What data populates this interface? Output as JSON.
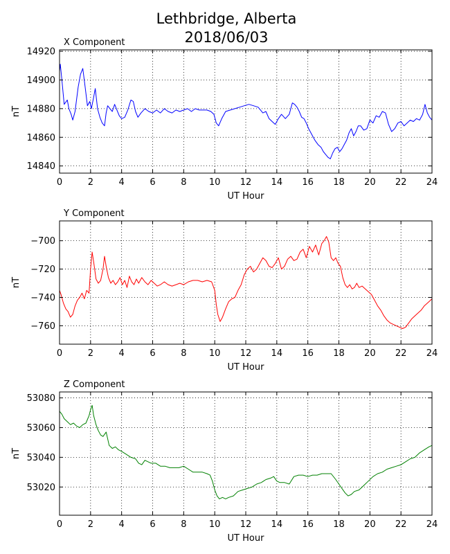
{
  "figure": {
    "title_line1": "Lethbridge, Alberta",
    "title_line2": "2018/06/03"
  },
  "chart_data": [
    {
      "type": "line",
      "title": "X Component",
      "xlabel": "UT Hour",
      "ylabel": "nT",
      "color": "#0000ff",
      "xlim": [
        0,
        24
      ],
      "ylim": [
        14835,
        14921
      ],
      "xticks": [
        0,
        2,
        4,
        6,
        8,
        10,
        12,
        14,
        16,
        18,
        20,
        22,
        24
      ],
      "yticks": [
        14840,
        14860,
        14880,
        14900,
        14920
      ],
      "grid": true,
      "series": [
        {
          "x": [
            0,
            0.05,
            0.15,
            0.3,
            0.5,
            0.6,
            0.75,
            0.85,
            1.0,
            1.2,
            1.35,
            1.5,
            1.65,
            1.8,
            1.95,
            2.05,
            2.2,
            2.3,
            2.45,
            2.6,
            2.75,
            2.9,
            3.0,
            3.1,
            3.25,
            3.4,
            3.55,
            3.7,
            3.85,
            4.0,
            4.2,
            4.4,
            4.6,
            4.75,
            4.9,
            5.05,
            5.25,
            5.5,
            5.75,
            6.0,
            6.25,
            6.5,
            6.75,
            7.0,
            7.25,
            7.5,
            7.75,
            8.0,
            8.25,
            8.5,
            8.75,
            9.0,
            9.25,
            9.5,
            9.75,
            9.95,
            10.1,
            10.25,
            10.45,
            10.7,
            11.0,
            11.3,
            11.6,
            11.9,
            12.2,
            12.5,
            12.8,
            13.1,
            13.3,
            13.5,
            13.7,
            13.9,
            14.1,
            14.3,
            14.55,
            14.8,
            15.0,
            15.15,
            15.3,
            15.45,
            15.6,
            15.75,
            15.9,
            16.05,
            16.25,
            16.45,
            16.65,
            16.85,
            17.0,
            17.15,
            17.3,
            17.45,
            17.6,
            17.75,
            17.9,
            18.05,
            18.2,
            18.35,
            18.5,
            18.65,
            18.8,
            18.95,
            19.1,
            19.25,
            19.4,
            19.6,
            19.8,
            20.0,
            20.2,
            20.4,
            20.6,
            20.8,
            21.0,
            21.2,
            21.4,
            21.6,
            21.8,
            22.0,
            22.2,
            22.4,
            22.6,
            22.8,
            23.0,
            23.2,
            23.4,
            23.55,
            23.7,
            23.85,
            24.0
          ],
          "y": [
            14906,
            14911,
            14900,
            14883,
            14886,
            14880,
            14876,
            14872,
            14878,
            14895,
            14904,
            14908,
            14895,
            14882,
            14885,
            14880,
            14888,
            14894,
            14880,
            14874,
            14870,
            14868,
            14877,
            14882,
            14880,
            14878,
            14883,
            14879,
            14875,
            14873,
            14874,
            14879,
            14886,
            14885,
            14878,
            14874,
            14877,
            14880,
            14878,
            14877,
            14879,
            14877,
            14880,
            14878,
            14877,
            14879,
            14878,
            14879,
            14880,
            14878,
            14880,
            14879,
            14879,
            14879,
            14878,
            14876,
            14870,
            14868,
            14873,
            14878,
            14879,
            14880,
            14881,
            14882,
            14883,
            14882,
            14881,
            14877,
            14878,
            14873,
            14871,
            14869,
            14873,
            14876,
            14873,
            14876,
            14884,
            14883,
            14881,
            14878,
            14874,
            14873,
            14870,
            14866,
            14862,
            14858,
            14855,
            14853,
            14850,
            14848,
            14846,
            14845,
            14849,
            14852,
            14853,
            14850,
            14852,
            14855,
            14858,
            14863,
            14866,
            14861,
            14864,
            14868,
            14868,
            14865,
            14866,
            14872,
            14870,
            14875,
            14874,
            14878,
            14877,
            14869,
            14864,
            14866,
            14870,
            14871,
            14868,
            14870,
            14872,
            14871,
            14873,
            14872,
            14876,
            14883,
            14877,
            14874,
            14872
          ]
        }
      ]
    },
    {
      "type": "line",
      "title": "Y Component",
      "xlabel": "UT Hour",
      "ylabel": "nT",
      "color": "#ff0000",
      "xlim": [
        0,
        24
      ],
      "ylim": [
        -773,
        -686
      ],
      "xticks": [
        0,
        2,
        4,
        6,
        8,
        10,
        12,
        14,
        16,
        18,
        20,
        22,
        24
      ],
      "yticks": [
        -760,
        -740,
        -720,
        -700
      ],
      "grid": true,
      "series": [
        {
          "x": [
            0,
            0.1,
            0.25,
            0.4,
            0.55,
            0.7,
            0.85,
            1.0,
            1.15,
            1.3,
            1.45,
            1.6,
            1.75,
            1.9,
            2.0,
            2.1,
            2.2,
            2.35,
            2.5,
            2.65,
            2.8,
            2.9,
            3.0,
            3.15,
            3.3,
            3.45,
            3.6,
            3.75,
            3.9,
            4.05,
            4.2,
            4.35,
            4.5,
            4.65,
            4.8,
            4.95,
            5.1,
            5.3,
            5.5,
            5.7,
            5.9,
            6.1,
            6.3,
            6.5,
            6.75,
            7.0,
            7.25,
            7.5,
            7.75,
            8.0,
            8.3,
            8.6,
            8.9,
            9.2,
            9.5,
            9.8,
            10.0,
            10.1,
            10.2,
            10.35,
            10.5,
            10.7,
            10.9,
            11.1,
            11.3,
            11.5,
            11.7,
            11.9,
            12.1,
            12.3,
            12.5,
            12.7,
            12.9,
            13.1,
            13.3,
            13.5,
            13.7,
            13.9,
            14.1,
            14.3,
            14.5,
            14.7,
            14.9,
            15.1,
            15.3,
            15.5,
            15.7,
            15.9,
            16.1,
            16.3,
            16.5,
            16.7,
            16.9,
            17.05,
            17.2,
            17.35,
            17.5,
            17.65,
            17.8,
            17.95,
            18.1,
            18.25,
            18.4,
            18.55,
            18.7,
            18.85,
            19.0,
            19.15,
            19.3,
            19.5,
            19.7,
            19.9,
            20.1,
            20.3,
            20.5,
            20.7,
            20.9,
            21.1,
            21.3,
            21.5,
            21.7,
            21.9,
            22.1,
            22.3,
            22.5,
            22.7,
            22.9,
            23.1,
            23.3,
            23.5,
            23.7,
            23.9,
            24.0
          ],
          "y": [
            -735,
            -738,
            -744,
            -748,
            -750,
            -754,
            -752,
            -746,
            -742,
            -740,
            -737,
            -741,
            -735,
            -737,
            -720,
            -708,
            -715,
            -727,
            -730,
            -728,
            -720,
            -711,
            -718,
            -726,
            -730,
            -728,
            -731,
            -729,
            -726,
            -731,
            -728,
            -733,
            -725,
            -729,
            -731,
            -727,
            -730,
            -726,
            -729,
            -731,
            -728,
            -730,
            -732,
            -731,
            -729,
            -731,
            -732,
            -731,
            -730,
            -731,
            -729,
            -728,
            -728,
            -729,
            -728,
            -729,
            -735,
            -745,
            -752,
            -757,
            -754,
            -748,
            -743,
            -741,
            -740,
            -735,
            -731,
            -724,
            -720,
            -718,
            -722,
            -720,
            -716,
            -712,
            -714,
            -718,
            -719,
            -716,
            -712,
            -720,
            -718,
            -713,
            -711,
            -714,
            -713,
            -708,
            -706,
            -712,
            -704,
            -708,
            -703,
            -710,
            -702,
            -700,
            -697,
            -701,
            -712,
            -714,
            -712,
            -716,
            -718,
            -726,
            -731,
            -733,
            -731,
            -734,
            -733,
            -730,
            -733,
            -732,
            -734,
            -736,
            -738,
            -742,
            -746,
            -749,
            -753,
            -756,
            -758,
            -759,
            -760,
            -761,
            -762,
            -761,
            -758,
            -755,
            -753,
            -751,
            -749,
            -746,
            -744,
            -742,
            -741
          ]
        }
      ]
    },
    {
      "type": "line",
      "title": "Z Component",
      "xlabel": "UT Hour",
      "ylabel": "nT",
      "color": "#008000",
      "xlim": [
        0,
        24
      ],
      "ylim": [
        53001,
        53084
      ],
      "xticks": [
        0,
        2,
        4,
        6,
        8,
        10,
        12,
        14,
        16,
        18,
        20,
        22,
        24
      ],
      "yticks": [
        53020,
        53040,
        53060,
        53080
      ],
      "grid": true,
      "series": [
        {
          "x": [
            0,
            0.15,
            0.3,
            0.5,
            0.7,
            0.9,
            1.1,
            1.3,
            1.5,
            1.7,
            1.9,
            2.0,
            2.1,
            2.2,
            2.35,
            2.5,
            2.65,
            2.8,
            3.0,
            3.2,
            3.4,
            3.6,
            3.8,
            4.0,
            4.3,
            4.6,
            4.9,
            5.1,
            5.3,
            5.5,
            5.7,
            5.9,
            6.2,
            6.5,
            6.8,
            7.1,
            7.4,
            7.7,
            8.0,
            8.3,
            8.6,
            8.9,
            9.2,
            9.5,
            9.7,
            9.85,
            10.0,
            10.15,
            10.3,
            10.5,
            10.7,
            10.9,
            11.2,
            11.5,
            11.8,
            12.1,
            12.4,
            12.7,
            13.0,
            13.3,
            13.6,
            13.8,
            14.0,
            14.2,
            14.5,
            14.8,
            15.1,
            15.4,
            15.7,
            16.0,
            16.3,
            16.6,
            16.9,
            17.2,
            17.5,
            17.8,
            18.0,
            18.2,
            18.4,
            18.6,
            18.8,
            19.0,
            19.3,
            19.6,
            19.9,
            20.2,
            20.5,
            20.8,
            21.1,
            21.4,
            21.7,
            22.0,
            22.3,
            22.6,
            22.9,
            23.2,
            23.5,
            23.8,
            24.0
          ],
          "y": [
            53071,
            53069,
            53066,
            53064,
            53062,
            53063,
            53061,
            53060,
            53062,
            53063,
            53068,
            53072,
            53075,
            53068,
            53062,
            53058,
            53055,
            53054,
            53057,
            53048,
            53046,
            53047,
            53045,
            53044,
            53042,
            53040,
            53039,
            53036,
            53035,
            53038,
            53037,
            53036,
            53036,
            53034,
            53034,
            53033,
            53033,
            53033,
            53034,
            53032,
            53030,
            53030,
            53030,
            53029,
            53028,
            53024,
            53018,
            53014,
            53012,
            53013,
            53012,
            53013,
            53014,
            53017,
            53018,
            53019,
            53020,
            53022,
            53023,
            53025,
            53026,
            53027,
            53024,
            53023,
            53023,
            53022,
            53027,
            53028,
            53028,
            53027,
            53028,
            53028,
            53029,
            53029,
            53029,
            53025,
            53022,
            53019,
            53016,
            53014,
            53015,
            53017,
            53018,
            53021,
            53024,
            53027,
            53029,
            53030,
            53032,
            53033,
            53034,
            53035,
            53037,
            53039,
            53040,
            53043,
            53045,
            53047,
            53048
          ]
        }
      ]
    }
  ]
}
